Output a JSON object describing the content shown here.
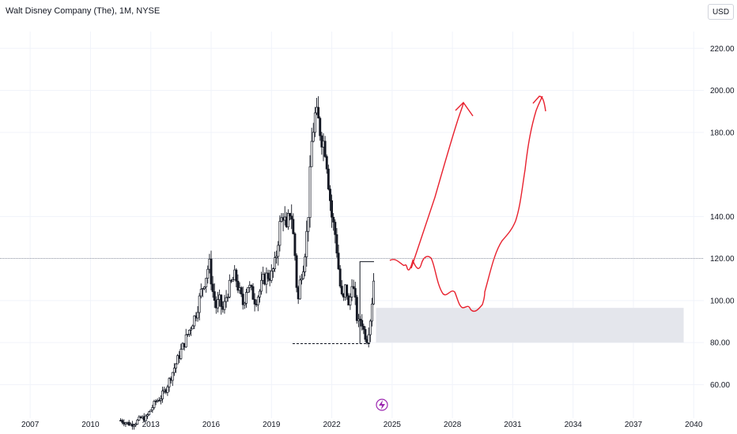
{
  "header": {
    "title": "Walt Disney Company (The), 1M, NYSE",
    "currency": "USD"
  },
  "colors": {
    "candle": "#131722",
    "drawing": "#e8212e",
    "zone": "#e4e6ec",
    "event_icon": "#9c27b0",
    "price_line": "#787b86"
  },
  "icons": {
    "event": "lightning-icon"
  },
  "chart_data": {
    "type": "candlestick",
    "title": "Walt Disney Company (The), 1M, NYSE",
    "x_ticks": [
      "2007",
      "2010",
      "2013",
      "2016",
      "2019",
      "2022",
      "2025",
      "2028",
      "2031",
      "2034",
      "2037",
      "2040"
    ],
    "y_ticks": [
      "60.00",
      "80.00",
      "100.00",
      "120.00",
      "140.00",
      "180.00",
      "200.00",
      "220.00"
    ],
    "x_range": [
      2005.5,
      2040.5
    ],
    "y_range": [
      44,
      228
    ],
    "grid": true,
    "current_price_line": 120,
    "support_zone": {
      "x_start": 2024.2,
      "x_end": 2039.5,
      "y_low": 80,
      "y_high": 96.5
    },
    "dashed_low_line": {
      "x_start": 2020.05,
      "x_end": 2023.9,
      "y": 79.5
    },
    "range_box": {
      "x_start": 2023.4,
      "x_end": 2024.1,
      "y_low": 79.5,
      "y_high": 118.5
    },
    "close_series": [
      [
        2011.5,
        43
      ],
      [
        2011.75,
        42
      ],
      [
        2012.0,
        41
      ],
      [
        2012.25,
        42
      ],
      [
        2012.5,
        44
      ],
      [
        2012.75,
        44
      ],
      [
        2013.0,
        48
      ],
      [
        2013.25,
        52
      ],
      [
        2013.5,
        54
      ],
      [
        2013.75,
        58
      ],
      [
        2014.0,
        64
      ],
      [
        2014.25,
        70
      ],
      [
        2014.5,
        76
      ],
      [
        2014.75,
        82
      ],
      [
        2015.0,
        88
      ],
      [
        2015.25,
        94
      ],
      [
        2015.5,
        104
      ],
      [
        2015.75,
        112
      ],
      [
        2015.9,
        118
      ],
      [
        2016.1,
        103
      ],
      [
        2016.25,
        97
      ],
      [
        2016.4,
        100
      ],
      [
        2016.6,
        95
      ],
      [
        2016.8,
        104
      ],
      [
        2017.0,
        108
      ],
      [
        2017.2,
        112
      ],
      [
        2017.4,
        104
      ],
      [
        2017.6,
        98
      ],
      [
        2017.8,
        108
      ],
      [
        2018.0,
        104
      ],
      [
        2018.2,
        100
      ],
      [
        2018.4,
        104
      ],
      [
        2018.6,
        110
      ],
      [
        2018.8,
        112
      ],
      [
        2019.0,
        112
      ],
      [
        2019.2,
        118
      ],
      [
        2019.4,
        135
      ],
      [
        2019.6,
        142
      ],
      [
        2019.75,
        132
      ],
      [
        2019.9,
        143
      ],
      [
        2020.0,
        140
      ],
      [
        2020.2,
        118
      ],
      [
        2020.3,
        97
      ],
      [
        2020.45,
        112
      ],
      [
        2020.6,
        118
      ],
      [
        2020.8,
        136
      ],
      [
        2021.0,
        175
      ],
      [
        2021.15,
        188
      ],
      [
        2021.3,
        186
      ],
      [
        2021.5,
        178
      ],
      [
        2021.7,
        172
      ],
      [
        2021.85,
        155
      ],
      [
        2022.0,
        140
      ],
      [
        2022.2,
        130
      ],
      [
        2022.4,
        108
      ],
      [
        2022.55,
        98
      ],
      [
        2022.7,
        108
      ],
      [
        2022.85,
        95
      ],
      [
        2023.0,
        110
      ],
      [
        2023.15,
        100
      ],
      [
        2023.3,
        88
      ],
      [
        2023.45,
        92
      ],
      [
        2023.6,
        85
      ],
      [
        2023.75,
        82
      ],
      [
        2023.9,
        90
      ],
      [
        2024.05,
        105
      ],
      [
        2024.15,
        120
      ]
    ]
  }
}
